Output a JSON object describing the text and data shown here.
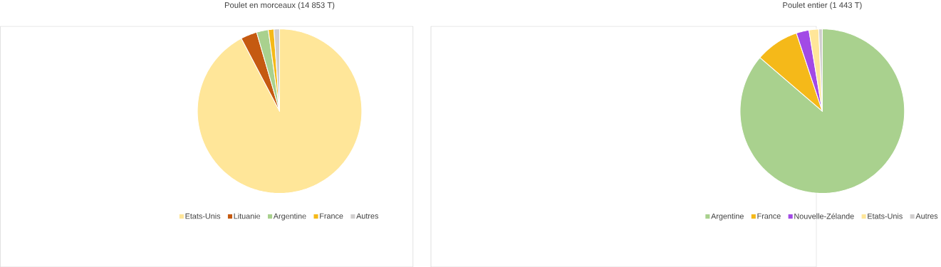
{
  "chart_data": [
    {
      "type": "pie",
      "title": "Poulet en morceaux (14 853 T)",
      "legend": "bottom",
      "categories": [
        "Etats-Unis",
        "Lituanie",
        "Argentine",
        "France",
        "Autres"
      ],
      "values": [
        92.3,
        3.2,
        2.3,
        1.1,
        1.1
      ],
      "colors": [
        "#ffe699",
        "#c55a11",
        "#a9d18e",
        "#f5b919",
        "#d0cece"
      ]
    },
    {
      "type": "pie",
      "title": "Poulet entier (1 443 T)",
      "legend": "bottom",
      "categories": [
        "Argentine",
        "France",
        "Nouvelle-Zélande",
        "Etats-Unis",
        "Autres"
      ],
      "values": [
        86.3,
        8.6,
        2.5,
        1.9,
        0.7
      ],
      "colors": [
        "#a9d18e",
        "#f5b919",
        "#a24ae6",
        "#ffe699",
        "#d0cece"
      ]
    }
  ]
}
